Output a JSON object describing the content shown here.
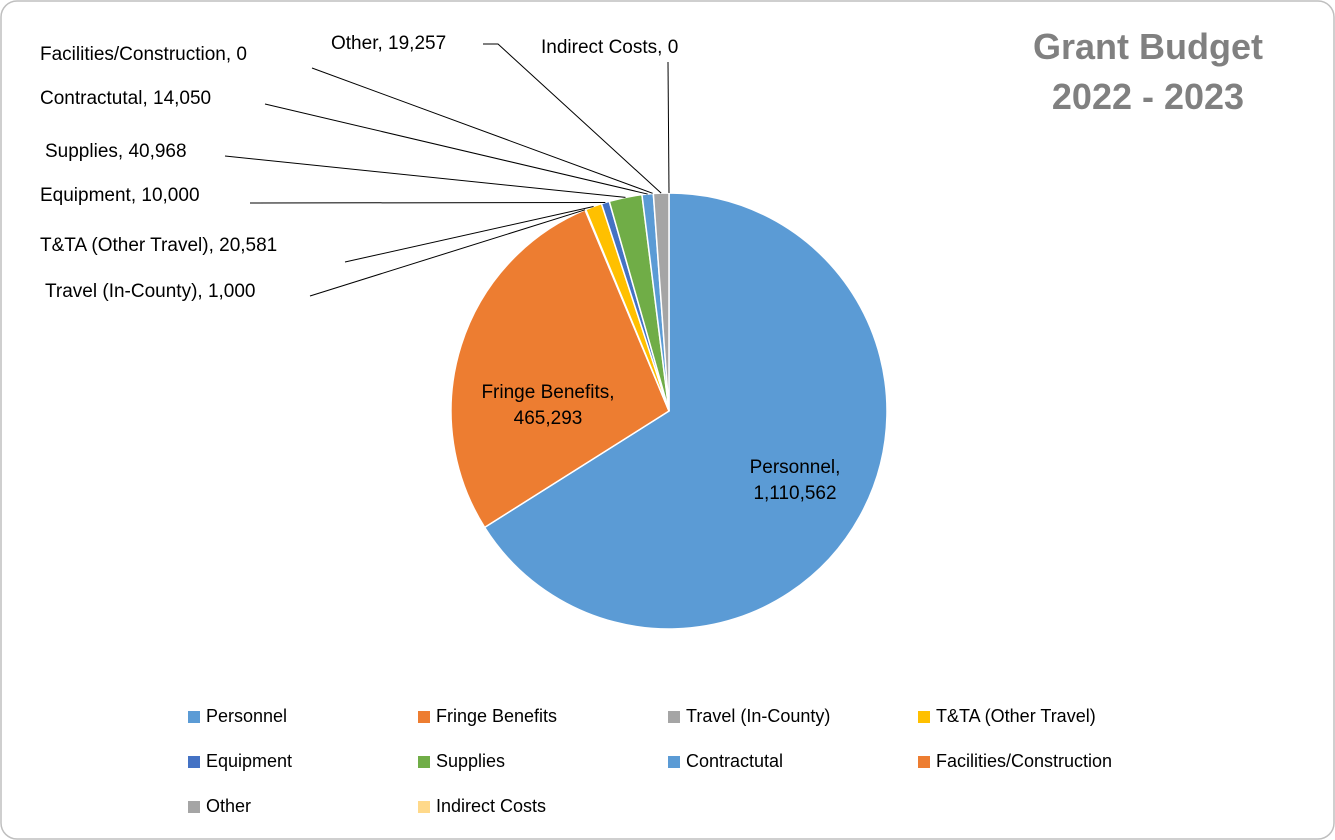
{
  "chart_data": {
    "type": "pie",
    "title": "Grant Budget 2022 - 2023",
    "categories": [
      "Personnel",
      "Fringe Benefits",
      "Travel (In-County)",
      "T&TA (Other Travel)",
      "Equipment",
      "Supplies",
      "Contractutal",
      "Facilities/Construction",
      "Other",
      "Indirect Costs"
    ],
    "values": [
      1110562,
      465293,
      1000,
      20581,
      10000,
      40968,
      14050,
      0,
      19257,
      0
    ],
    "value_labels": [
      "Personnel, 1,110,562",
      "Fringe Benefits, 465,293",
      "Travel (In-County), 1,000",
      "T&TA (Other Travel), 20,581",
      "Equipment, 10,000",
      "Supplies, 40,968",
      "Contractutal, 14,050",
      "Facilities/Construction, 0",
      "Other, 19,257",
      "Indirect Costs, 0"
    ],
    "colors": [
      "#5b9bd5",
      "#ed7d31",
      "#a5a5a5",
      "#ffc000",
      "#4472c4",
      "#70ad47",
      "#5b9bd5",
      "#ed7d31",
      "#a5a5a5",
      "#ffd98a"
    ],
    "legend": "bottom"
  }
}
